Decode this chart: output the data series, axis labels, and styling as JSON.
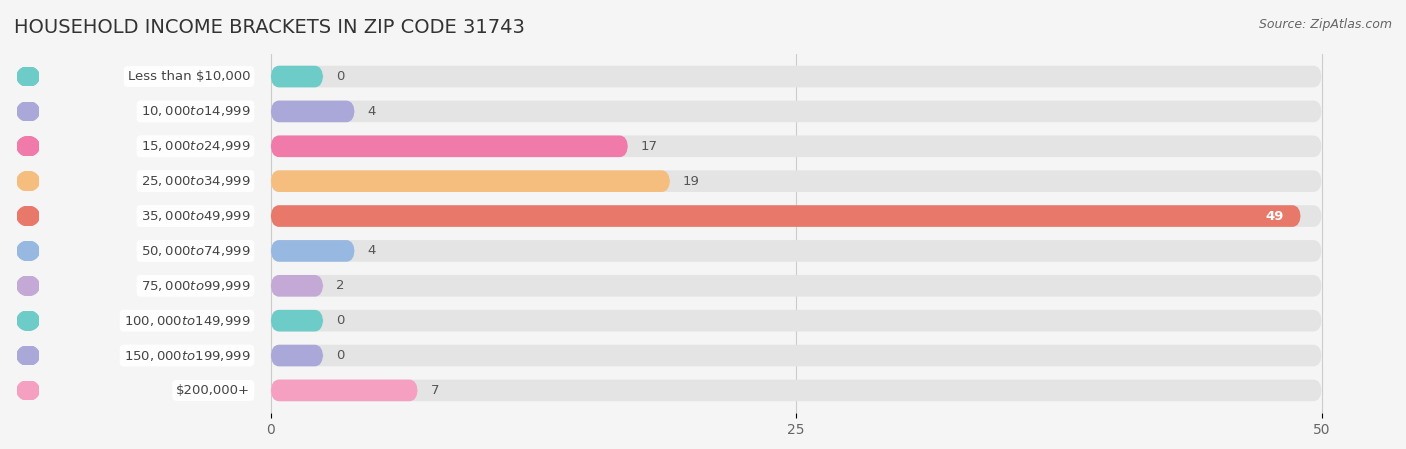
{
  "title": "HOUSEHOLD INCOME BRACKETS IN ZIP CODE 31743",
  "source_text": "Source: ZipAtlas.com",
  "categories": [
    "Less than $10,000",
    "$10,000 to $14,999",
    "$15,000 to $24,999",
    "$25,000 to $34,999",
    "$35,000 to $49,999",
    "$50,000 to $74,999",
    "$75,000 to $99,999",
    "$100,000 to $149,999",
    "$150,000 to $199,999",
    "$200,000+"
  ],
  "values": [
    0,
    4,
    17,
    19,
    49,
    4,
    2,
    0,
    0,
    7
  ],
  "bar_colors": [
    "#6DCCC8",
    "#A9A8D8",
    "#F07BAA",
    "#F5BE7E",
    "#E8796A",
    "#97B8E0",
    "#C4A8D5",
    "#6DCCC8",
    "#A9A8D8",
    "#F5A0C0"
  ],
  "xlim": [
    0,
    50
  ],
  "xticks": [
    0,
    25,
    50
  ],
  "background_color": "#f5f5f5",
  "bar_bg_color": "#e4e4e4",
  "title_fontsize": 14,
  "label_fontsize": 9.5,
  "tick_fontsize": 10,
  "source_fontsize": 9
}
